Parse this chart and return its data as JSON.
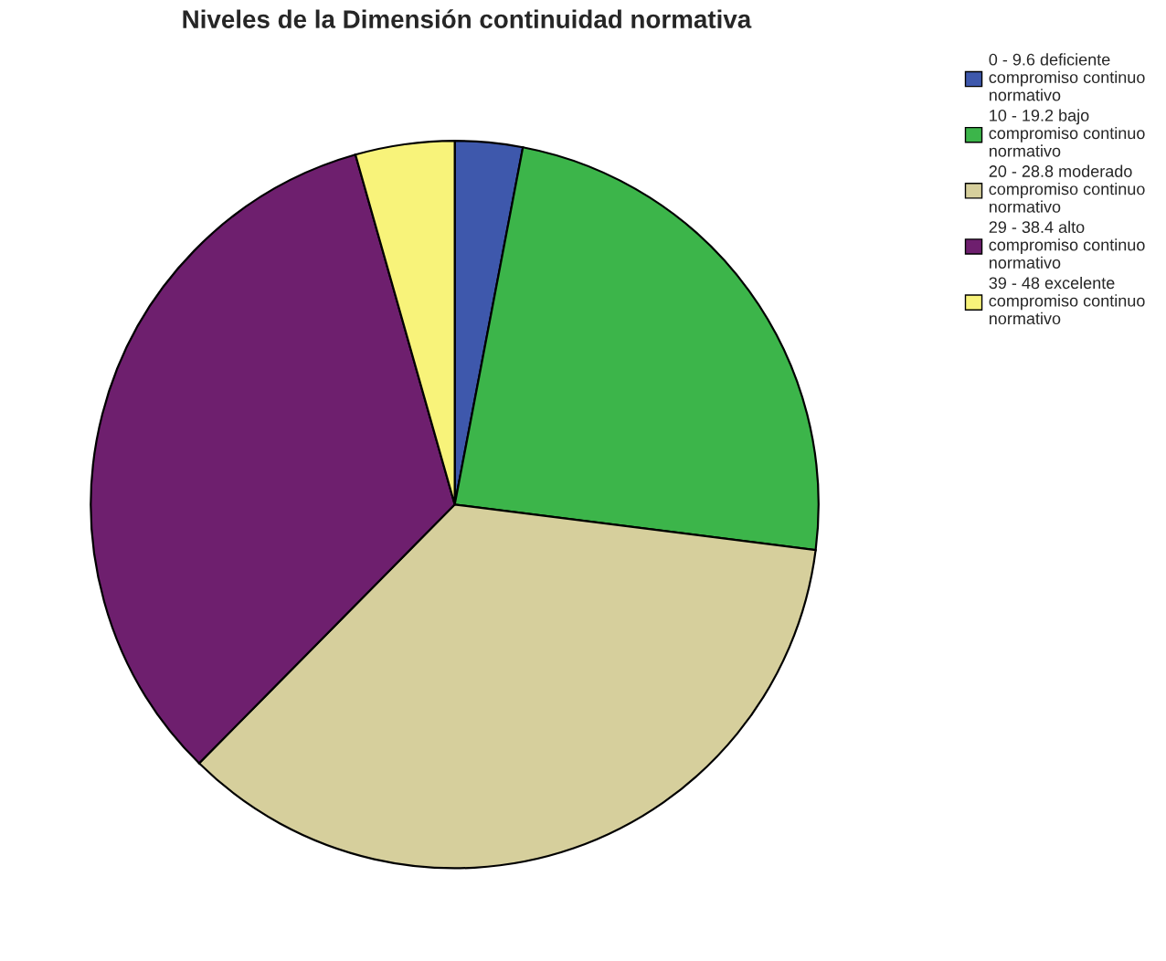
{
  "chart_data": {
    "type": "pie",
    "title": "Niveles de la Dimensión continuidad normativa",
    "categories": [
      "0 - 9.6 deficiente compromiso continuo normativo",
      "10 - 19.2 bajo compromiso continuo normativo",
      "20 - 28.8 moderado compromiso continuo normativo",
      "29 - 38.4 alto compromiso continuo normativo",
      "39 - 48 excelente compromiso continuo normativo"
    ],
    "values": [
      3.0,
      24.0,
      35.4,
      33.2,
      4.4
    ],
    "colors": [
      "#3e58ac",
      "#3cb54a",
      "#d6cf9c",
      "#6e1f6e",
      "#f8f37a"
    ],
    "legend": "top right"
  }
}
